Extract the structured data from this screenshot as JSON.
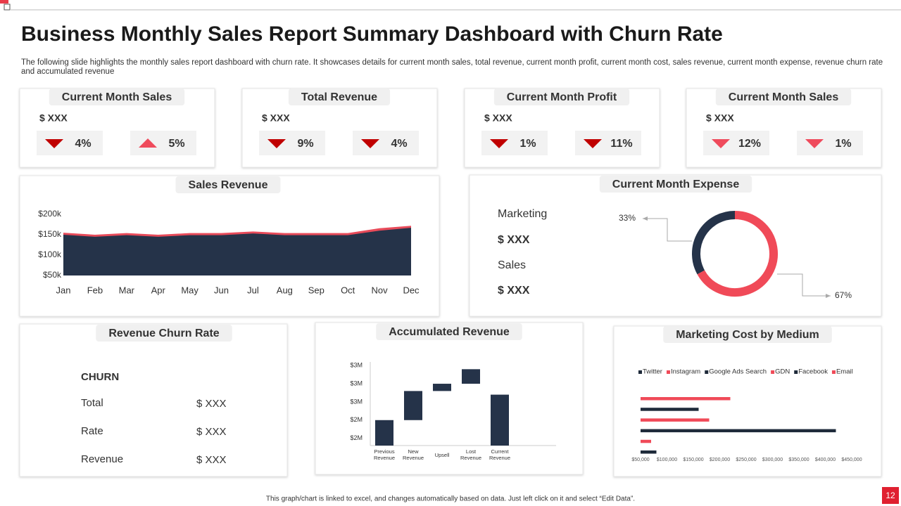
{
  "title": "Business Monthly Sales Report Summary Dashboard with Churn Rate",
  "subtitle": "The following slide highlights the monthly sales report dashboard with churn rate. It showcases details for current month sales, total revenue, current month profit, current month cost, sales revenue, current month expense, revenue churn rate and accumulated revenue",
  "kpis": [
    {
      "title": "Current Month Sales",
      "value": "$ XXX",
      "indicators": [
        {
          "trend": "down",
          "color": "#c00000",
          "text": "4%"
        },
        {
          "trend": "up",
          "color": "#ef4b5c",
          "text": "5%"
        }
      ]
    },
    {
      "title": "Total Revenue",
      "value": "$  XXX",
      "indicators": [
        {
          "trend": "down",
          "color": "#c00000",
          "text": "9%"
        },
        {
          "trend": "down",
          "color": "#c00000",
          "text": "4%"
        }
      ]
    },
    {
      "title": "Current Month Profit",
      "value": "$  XXX",
      "indicators": [
        {
          "trend": "down",
          "color": "#c00000",
          "text": "1%"
        },
        {
          "trend": "down",
          "color": "#c00000",
          "text": "11%"
        }
      ]
    },
    {
      "title": "Current Month Sales",
      "value": "$  XXX",
      "indicators": [
        {
          "trend": "down",
          "color": "#ef4b5c",
          "text": "12%"
        },
        {
          "trend": "down",
          "color": "#ef4b5c",
          "text": "1%"
        }
      ]
    }
  ],
  "expense": {
    "items": [
      {
        "label": "Marketing",
        "value": "$ XXX"
      },
      {
        "label": "Sales",
        "value": "$ XXX"
      }
    ]
  },
  "churn": {
    "title": "Revenue Churn Rate",
    "heading": "CHURN",
    "rows": [
      [
        "Total",
        "$ XXX"
      ],
      [
        "Rate",
        "$ XXX"
      ],
      [
        "Revenue",
        "$ XXX"
      ]
    ]
  },
  "chart_data": [
    {
      "type": "area",
      "title": "Sales Revenue",
      "categories": [
        "Jan",
        "Feb",
        "Mar",
        "Apr",
        "May",
        "Jun",
        "Jul",
        "Aug",
        "Sep",
        "Oct",
        "Nov",
        "Dec"
      ],
      "series": [
        {
          "color": "#e84b5a",
          "values": [
            155,
            150,
            154,
            150,
            154,
            154,
            158,
            154,
            154,
            154,
            166,
            172
          ]
        },
        {
          "color": "#253349",
          "values": [
            150,
            145,
            149,
            145,
            149,
            149,
            153,
            149,
            149,
            149,
            160,
            167
          ]
        }
      ],
      "ylim": [
        50,
        200
      ],
      "yticks": [
        {
          "value": 50,
          "label": "$50k"
        },
        {
          "value": 100,
          "label": "$100k"
        },
        {
          "value": 150,
          "label": "$150k"
        },
        {
          "value": 200,
          "label": "$200k"
        }
      ]
    },
    {
      "type": "donut",
      "title": "Current Month Expense",
      "values": [
        33,
        67
      ],
      "value_labels": [
        "33%",
        "67%"
      ],
      "colors": [
        "#253349",
        "#f04a58"
      ]
    },
    {
      "type": "waterfall",
      "title": "Accumulated Revenue",
      "categories": [
        "Previous Revenue",
        "New Revenue",
        "Upsell",
        "Lost Revenue",
        "Current Revenue"
      ],
      "values": [
        2.25,
        0.4,
        0.1,
        0.2,
        2.6
      ],
      "measures": [
        "absolute",
        "relative",
        "relative",
        "relative",
        "absolute"
      ],
      "color": "#253349",
      "ylim": [
        1.9,
        3.05
      ],
      "yticks": [
        {
          "value": 2,
          "label": "$2M"
        },
        {
          "value": 2.25,
          "label": "$2M"
        },
        {
          "value": 2.5,
          "label": "$3M"
        },
        {
          "value": 2.75,
          "label": "$3M"
        },
        {
          "value": 3,
          "label": "$3M"
        }
      ]
    },
    {
      "type": "bar",
      "orientation": "horizontal",
      "title": "Marketing Cost by Medium",
      "legend": "top",
      "series": [
        {
          "name": "Twitter",
          "color": "#1e2a3a",
          "values": [
            80000
          ]
        },
        {
          "name": "Instagram",
          "color": "#f04a58",
          "values": [
            70000
          ]
        },
        {
          "name": "Google Ads Search",
          "color": "#1e2a3a",
          "values": [
            420000
          ]
        },
        {
          "name": "GDN",
          "color": "#f04a58",
          "values": [
            180000
          ]
        },
        {
          "name": "Facebook",
          "color": "#1e2a3a",
          "values": [
            160000
          ]
        },
        {
          "name": "Email",
          "color": "#f04a58",
          "values": [
            220000
          ]
        }
      ],
      "xlim": [
        50000,
        450000
      ],
      "xticks": [
        {
          "value": 50000,
          "label": "$50,000"
        },
        {
          "value": 100000,
          "label": "$100,000"
        },
        {
          "value": 150000,
          "label": "$150,000"
        },
        {
          "value": 200000,
          "label": "$200,000"
        },
        {
          "value": 250000,
          "label": "$250,000"
        },
        {
          "value": 300000,
          "label": "$300,000"
        },
        {
          "value": 350000,
          "label": "$350,000"
        },
        {
          "value": 400000,
          "label": "$400,000"
        },
        {
          "value": 450000,
          "label": "$450,000"
        }
      ]
    }
  ],
  "footer": "This graph/chart is linked to excel, and changes automatically based on data. Just left click on it and select “Edit Data”.",
  "page_number": "12"
}
